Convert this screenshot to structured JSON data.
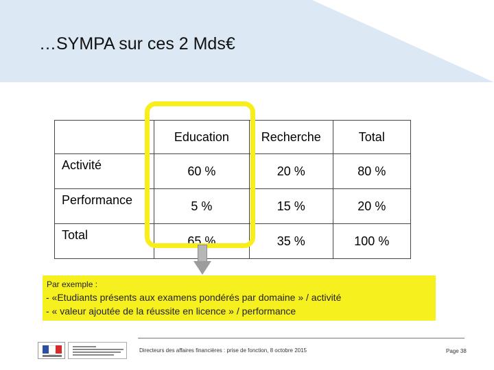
{
  "slide": {
    "title": "…SYMPA sur ces 2 Mds€"
  },
  "table": {
    "headers": [
      "",
      "Education",
      "Recherche",
      "Total"
    ],
    "rows": [
      {
        "label": "Activité",
        "values": [
          "60 %",
          "20 %",
          "80 %"
        ]
      },
      {
        "label": "Performance",
        "values": [
          "5 %",
          "15 %",
          "20 %"
        ]
      },
      {
        "label": "Total",
        "values": [
          "65 %",
          "35 %",
          "100 %"
        ]
      }
    ]
  },
  "note": {
    "label": "Par exemple :",
    "lines": [
      "- «Etudiants présents aux examens pondérés par domaine » / activité",
      "- « valeur ajoutée de la réussite en licence » / performance"
    ]
  },
  "footer": {
    "text": "Directeurs des affaires financières : prise de fonction, 8 octobre 2015",
    "page": "Page 38"
  },
  "colors": {
    "header_band": "#dce8f3",
    "highlight": "#f7ee1c",
    "note_background": "#f7f01f"
  }
}
